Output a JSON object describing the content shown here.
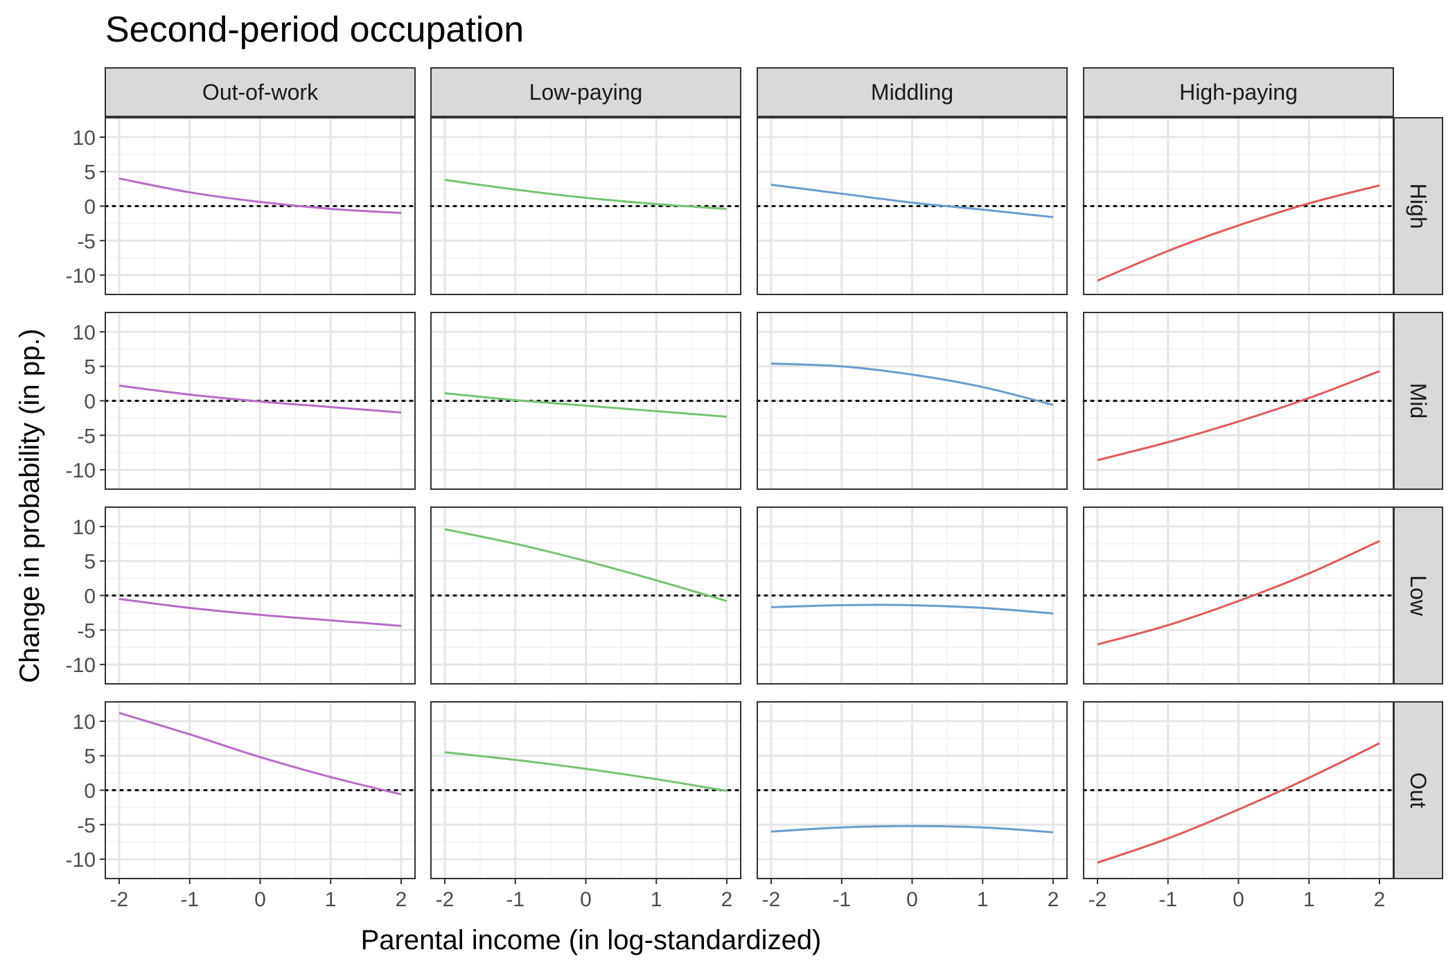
{
  "chart_data": {
    "type": "line",
    "title": "Second-period occupation",
    "xlabel": "Parental income (in log-standardized)",
    "ylabel": "Change in probability (in pp.)",
    "xlim": [
      -2,
      2
    ],
    "ylim": [
      -12,
      12
    ],
    "x_ticks": [
      -2,
      -1,
      0,
      1,
      2
    ],
    "x_tick_labels": [
      "-2",
      "-1",
      "0",
      "1",
      "2"
    ],
    "y_ticks": [
      -10,
      -5,
      0,
      5,
      10
    ],
    "y_tick_labels": [
      "-10",
      "-5",
      "0",
      "5",
      "10"
    ],
    "grid": true,
    "reference_line": {
      "y": 0,
      "style": "dotted"
    },
    "facet_columns": [
      "Out-of-work",
      "Low-paying",
      "Middling",
      "High-paying"
    ],
    "facet_rows": [
      "High",
      "Mid",
      "Low",
      "Out"
    ],
    "column_colors": [
      "#b66dc4",
      "#78c272",
      "#6a9dcb",
      "#e05a5a"
    ],
    "x": [
      -2,
      -1,
      0,
      1,
      2
    ],
    "panels": [
      {
        "row": "High",
        "column": "Out-of-work",
        "values": [
          4.0,
          2.0,
          0.6,
          -0.4,
          -1.0
        ]
      },
      {
        "row": "High",
        "column": "Low-paying",
        "values": [
          3.8,
          2.4,
          1.2,
          0.3,
          -0.4
        ]
      },
      {
        "row": "High",
        "column": "Middling",
        "values": [
          3.1,
          1.8,
          0.5,
          -0.5,
          -1.6
        ]
      },
      {
        "row": "High",
        "column": "High-paying",
        "values": [
          -10.8,
          -6.5,
          -2.8,
          0.4,
          3.0
        ]
      },
      {
        "row": "Mid",
        "column": "Out-of-work",
        "values": [
          2.2,
          0.9,
          -0.1,
          -0.9,
          -1.7
        ]
      },
      {
        "row": "Mid",
        "column": "Low-paying",
        "values": [
          1.1,
          0.1,
          -0.7,
          -1.5,
          -2.3
        ]
      },
      {
        "row": "Mid",
        "column": "Middling",
        "values": [
          5.4,
          5.0,
          3.8,
          2.0,
          -0.6
        ]
      },
      {
        "row": "Mid",
        "column": "High-paying",
        "values": [
          -8.6,
          -6.0,
          -3.0,
          0.4,
          4.3
        ]
      },
      {
        "row": "Low",
        "column": "Out-of-work",
        "values": [
          -0.5,
          -1.8,
          -2.8,
          -3.6,
          -4.4
        ]
      },
      {
        "row": "Low",
        "column": "Low-paying",
        "values": [
          9.6,
          7.5,
          5.0,
          2.2,
          -0.8
        ]
      },
      {
        "row": "Low",
        "column": "Middling",
        "values": [
          -1.7,
          -1.4,
          -1.4,
          -1.8,
          -2.6
        ]
      },
      {
        "row": "Low",
        "column": "High-paying",
        "values": [
          -7.1,
          -4.3,
          -0.8,
          3.2,
          7.9
        ]
      },
      {
        "row": "Out",
        "column": "Out-of-work",
        "values": [
          11.2,
          8.1,
          4.8,
          1.9,
          -0.6
        ]
      },
      {
        "row": "Out",
        "column": "Low-paying",
        "values": [
          5.5,
          4.4,
          3.1,
          1.6,
          -0.1
        ]
      },
      {
        "row": "Out",
        "column": "Middling",
        "values": [
          -6.0,
          -5.4,
          -5.2,
          -5.4,
          -6.1
        ]
      },
      {
        "row": "Out",
        "column": "High-paying",
        "values": [
          -10.5,
          -7.0,
          -2.8,
          1.8,
          6.8
        ]
      }
    ]
  }
}
